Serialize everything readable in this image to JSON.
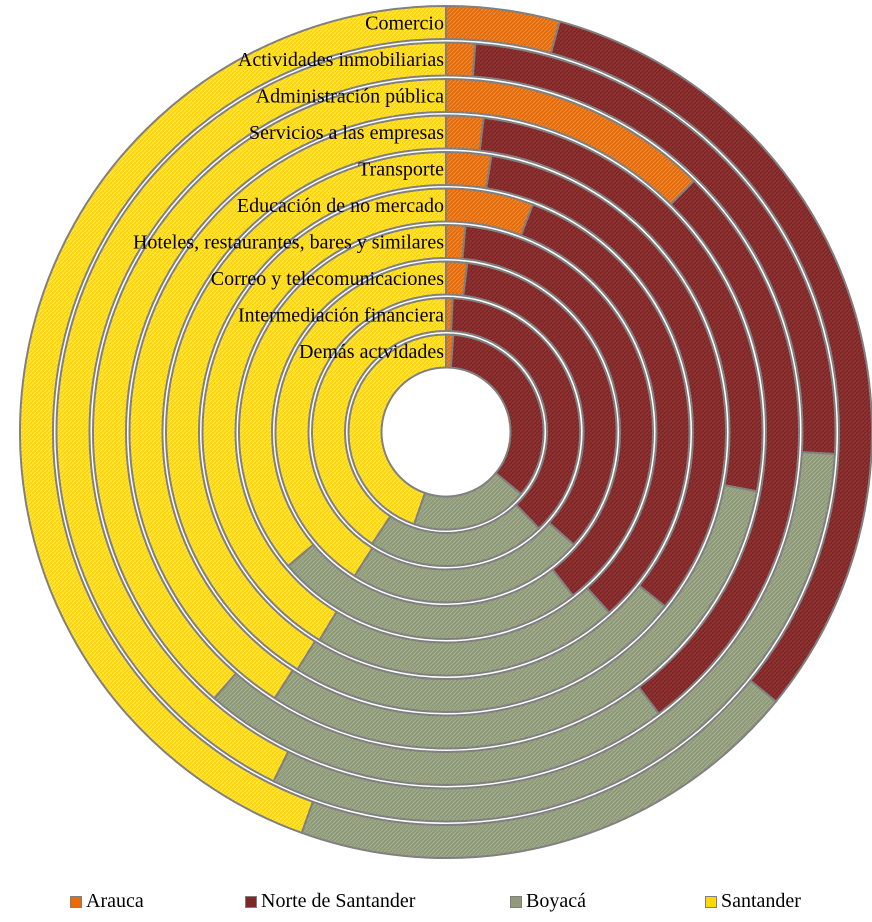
{
  "chart_data": {
    "type": "donut",
    "title": "",
    "categories": [
      "Comercio",
      "Actividades inmobiliarias",
      "Administración pública",
      "Servicios a las empresas",
      "Transporte",
      "Educación de no mercado",
      "Hoteles, restaurantes, bares y similares",
      "Correo y telecomunicaciones",
      "Intermediación financiera",
      "Demás actvidades"
    ],
    "series": [
      {
        "name": "Arauca",
        "color": "#e46c0a",
        "values": [
          4.3,
          1.2,
          12.4,
          1.9,
          2.6,
          5.8,
          1.5,
          2.0,
          0.8,
          1.2
        ]
      },
      {
        "name": "Norte de Santander",
        "color": "#7f2727",
        "values": [
          31.6,
          24.7,
          27.3,
          26.1,
          33.1,
          32.5,
          38.0,
          34.5,
          37.0,
          34.8
        ]
      },
      {
        "name": "Boyacá",
        "color": "#8e9a78",
        "values": [
          19.6,
          31.4,
          21.7,
          31.1,
          23.2,
          20.4,
          24.3,
          22.5,
          21.5,
          19.3
        ]
      },
      {
        "name": "Santander",
        "color": "#ffd700",
        "values": [
          44.5,
          42.7,
          38.6,
          40.9,
          41.1,
          41.3,
          36.2,
          41.0,
          40.7,
          44.7
        ]
      }
    ],
    "legend_position": "bottom",
    "units": "percent"
  }
}
